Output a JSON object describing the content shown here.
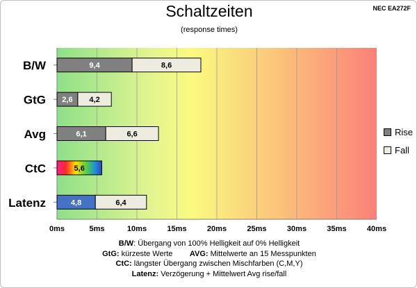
{
  "header": {
    "title": "Schaltzeiten",
    "subtitle": "(response times)",
    "model": "NEC EA272F"
  },
  "legend": {
    "rise_label": "Rise",
    "fall_label": "Fall",
    "rise_color": "#808080",
    "fall_color": "#eeece1"
  },
  "notes": [
    {
      "key": "B/W",
      "text": ":  Übergang von 100% Helligkeit auf 0% Helligkeit"
    },
    {
      "key": "GtG:",
      "text": " kürzeste  Werte",
      "key2": "AVG:",
      "text2": " Mittelwerte  an 15 Messpunkten"
    },
    {
      "key": "CtC:",
      "text": " längster Übergang  zwischen Mischfarben (C,M,Y)"
    },
    {
      "key": "Latenz:",
      "text": " Verzögerung  + Mittelwert  Avg rise/fall"
    }
  ],
  "chart_data": {
    "type": "bar",
    "orientation": "horizontal",
    "stacked": true,
    "categories": [
      "B/W",
      "GtG",
      "Avg",
      "CtC",
      "Latenz"
    ],
    "series": [
      {
        "name": "Rise",
        "values": [
          9.4,
          2.6,
          6.1,
          null,
          null
        ],
        "color": "#808080"
      },
      {
        "name": "Fall",
        "values": [
          8.6,
          4.2,
          6.6,
          null,
          6.4
        ],
        "color": "#eeece1"
      }
    ],
    "special_segments": [
      {
        "category": "CtC",
        "value": 5.6,
        "fill": "rainbow"
      },
      {
        "category": "Latenz",
        "value": 4.8,
        "color": "#4472c4"
      }
    ],
    "xlim": [
      0,
      40
    ],
    "x_ticks": [
      "0ms",
      "5ms",
      "10ms",
      "15ms",
      "20ms",
      "25ms",
      "30ms",
      "35ms",
      "40ms"
    ],
    "background": "gradient green-yellow-red",
    "grid": true,
    "legend_position": "right"
  }
}
